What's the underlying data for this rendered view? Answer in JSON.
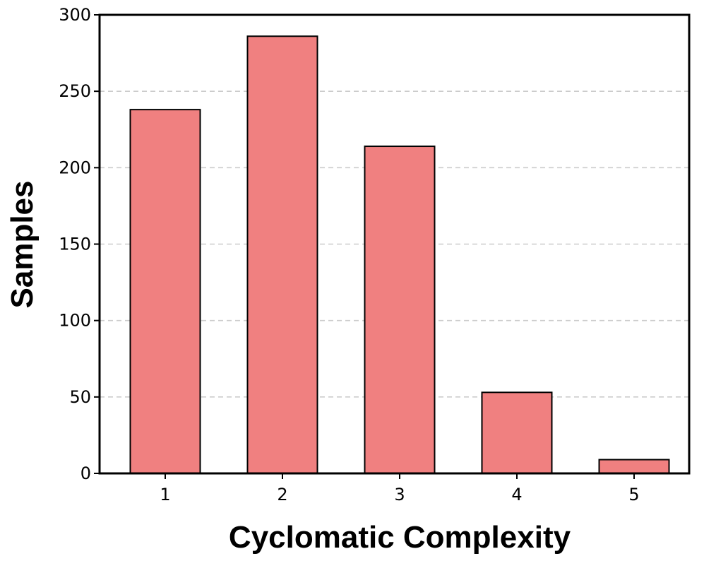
{
  "chart_data": {
    "type": "bar",
    "xlabel": "Cyclomatic Complexity",
    "ylabel": "Samples",
    "categories": [
      "1",
      "2",
      "3",
      "4",
      "5"
    ],
    "values": [
      238,
      286,
      214,
      53,
      9
    ],
    "ylim": [
      0,
      300
    ],
    "yticks": [
      "0",
      "50",
      "100",
      "150",
      "200",
      "250",
      "300"
    ],
    "grid": "horizontal-dashed",
    "legend": "none",
    "colors": {
      "bar_fill": "#f08080",
      "bar_edge": "#000000",
      "grid": "#cccccc"
    }
  }
}
